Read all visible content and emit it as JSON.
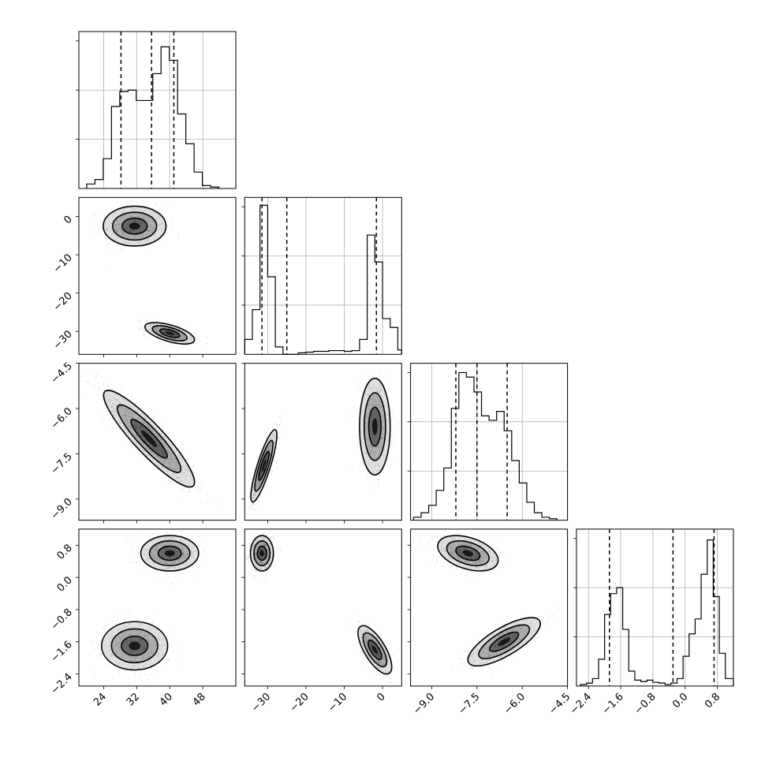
{
  "chart_data": {
    "type": "corner",
    "parameters": [
      {
        "range": [
          18,
          56
        ],
        "ticks": [
          24,
          32,
          40,
          48
        ],
        "tick_labels": [
          "24",
          "32",
          "40",
          "48"
        ]
      },
      {
        "range": [
          -36,
          5
        ],
        "ticks": [
          -30,
          -20,
          -10,
          0
        ],
        "tick_labels": [
          "−30",
          "−20",
          "−10",
          "0"
        ]
      },
      {
        "range": [
          -9.7,
          -4.5
        ],
        "ticks": [
          -9.0,
          -7.5,
          -6.0,
          -4.5
        ],
        "tick_labels": [
          "−9.0",
          "−7.5",
          "−6.0",
          "−4.5"
        ]
      },
      {
        "range": [
          -2.7,
          1.2
        ],
        "ticks": [
          -2.4,
          -1.6,
          -0.8,
          0.0,
          0.8
        ],
        "tick_labels": [
          "−2.4",
          "−1.6",
          "−0.8",
          "0.0",
          "0.8"
        ]
      }
    ],
    "histograms": [
      {
        "param": 0,
        "quantiles": [
          28.2,
          35.6,
          41.0
        ],
        "bins": [
          {
            "x0": 19.9,
            "x1": 21.9,
            "count": 0.03
          },
          {
            "x0": 21.9,
            "x1": 23.9,
            "count": 0.06
          },
          {
            "x0": 23.9,
            "x1": 25.9,
            "count": 0.2
          },
          {
            "x0": 25.9,
            "x1": 27.9,
            "count": 0.55
          },
          {
            "x0": 27.9,
            "x1": 29.9,
            "count": 0.65
          },
          {
            "x0": 29.9,
            "x1": 31.9,
            "count": 0.66
          },
          {
            "x0": 31.9,
            "x1": 33.9,
            "count": 0.59
          },
          {
            "x0": 33.9,
            "x1": 35.9,
            "count": 0.59
          },
          {
            "x0": 35.9,
            "x1": 37.9,
            "count": 0.77
          },
          {
            "x0": 37.9,
            "x1": 39.9,
            "count": 0.95
          },
          {
            "x0": 39.9,
            "x1": 41.9,
            "count": 0.86
          },
          {
            "x0": 41.9,
            "x1": 43.9,
            "count": 0.5
          },
          {
            "x0": 43.9,
            "x1": 45.9,
            "count": 0.3
          },
          {
            "x0": 45.9,
            "x1": 47.9,
            "count": 0.11
          },
          {
            "x0": 47.9,
            "x1": 49.9,
            "count": 0.02
          },
          {
            "x0": 49.9,
            "x1": 51.9,
            "count": 0.01
          }
        ]
      },
      {
        "param": 1,
        "quantiles": [
          -31.5,
          -25.0,
          -1.6
        ],
        "bins": [
          {
            "x0": -36,
            "x1": -34,
            "count": 0.1
          },
          {
            "x0": -34,
            "x1": -32,
            "count": 0.3
          },
          {
            "x0": -32,
            "x1": -30,
            "count": 1.0
          },
          {
            "x0": -30,
            "x1": -28,
            "count": 0.52
          },
          {
            "x0": -28,
            "x1": -26,
            "count": 0.05
          },
          {
            "x0": -26,
            "x1": -24,
            "count": 0.0
          },
          {
            "x0": -24,
            "x1": -22,
            "count": 0.0
          },
          {
            "x0": -22,
            "x1": -20,
            "count": 0.01
          },
          {
            "x0": -20,
            "x1": -18,
            "count": 0.015
          },
          {
            "x0": -18,
            "x1": -16,
            "count": 0.02
          },
          {
            "x0": -16,
            "x1": -14,
            "count": 0.02
          },
          {
            "x0": -14,
            "x1": -12,
            "count": 0.025
          },
          {
            "x0": -12,
            "x1": -10,
            "count": 0.025
          },
          {
            "x0": -10,
            "x1": -8,
            "count": 0.02
          },
          {
            "x0": -8,
            "x1": -6,
            "count": 0.025
          },
          {
            "x0": -6,
            "x1": -4,
            "count": 0.1
          },
          {
            "x0": -4,
            "x1": -2,
            "count": 0.8
          },
          {
            "x0": -2,
            "x1": 0,
            "count": 0.62
          },
          {
            "x0": 0,
            "x1": 2,
            "count": 0.24
          },
          {
            "x0": 2,
            "x1": 4,
            "count": 0.18
          },
          {
            "x0": 4,
            "x1": 5,
            "count": 0.03
          }
        ]
      },
      {
        "param": 2,
        "quantiles": [
          -8.2,
          -7.5,
          -6.5
        ],
        "bins": [
          {
            "x0": -9.6,
            "x1": -9.35,
            "count": 0.02
          },
          {
            "x0": -9.35,
            "x1": -9.1,
            "count": 0.05
          },
          {
            "x0": -9.1,
            "x1": -8.85,
            "count": 0.1
          },
          {
            "x0": -8.85,
            "x1": -8.6,
            "count": 0.2
          },
          {
            "x0": -8.6,
            "x1": -8.35,
            "count": 0.35
          },
          {
            "x0": -8.35,
            "x1": -8.1,
            "count": 0.75
          },
          {
            "x0": -8.1,
            "x1": -7.85,
            "count": 0.99
          },
          {
            "x0": -7.85,
            "x1": -7.6,
            "count": 0.96
          },
          {
            "x0": -7.6,
            "x1": -7.35,
            "count": 0.86
          },
          {
            "x0": -7.35,
            "x1": -7.1,
            "count": 0.7
          },
          {
            "x0": -7.1,
            "x1": -6.85,
            "count": 0.67
          },
          {
            "x0": -6.85,
            "x1": -6.6,
            "count": 0.73
          },
          {
            "x0": -6.6,
            "x1": -6.35,
            "count": 0.6
          },
          {
            "x0": -6.35,
            "x1": -6.1,
            "count": 0.4
          },
          {
            "x0": -6.1,
            "x1": -5.85,
            "count": 0.25
          },
          {
            "x0": -5.85,
            "x1": -5.6,
            "count": 0.12
          },
          {
            "x0": -5.6,
            "x1": -5.35,
            "count": 0.05
          },
          {
            "x0": -5.35,
            "x1": -5.1,
            "count": 0.02
          },
          {
            "x0": -5.1,
            "x1": -4.85,
            "count": 0.01
          }
        ]
      },
      {
        "param": 3,
        "quantiles": [
          -1.88,
          -0.3,
          0.72
        ],
        "bins": [
          {
            "x0": -2.6,
            "x1": -2.45,
            "count": 0.01
          },
          {
            "x0": -2.45,
            "x1": -2.3,
            "count": 0.02
          },
          {
            "x0": -2.3,
            "x1": -2.15,
            "count": 0.05
          },
          {
            "x0": -2.15,
            "x1": -2.0,
            "count": 0.18
          },
          {
            "x0": -2.0,
            "x1": -1.85,
            "count": 0.48
          },
          {
            "x0": -1.85,
            "x1": -1.7,
            "count": 0.62
          },
          {
            "x0": -1.7,
            "x1": -1.55,
            "count": 0.66
          },
          {
            "x0": -1.55,
            "x1": -1.4,
            "count": 0.38
          },
          {
            "x0": -1.4,
            "x1": -1.25,
            "count": 0.1
          },
          {
            "x0": -1.25,
            "x1": -1.1,
            "count": 0.04
          },
          {
            "x0": -1.1,
            "x1": -0.95,
            "count": 0.03
          },
          {
            "x0": -0.95,
            "x1": -0.8,
            "count": 0.04
          },
          {
            "x0": -0.8,
            "x1": -0.65,
            "count": 0.025
          },
          {
            "x0": -0.65,
            "x1": -0.5,
            "count": 0.02
          },
          {
            "x0": -0.5,
            "x1": -0.35,
            "count": 0.01
          },
          {
            "x0": -0.35,
            "x1": -0.2,
            "count": 0.02
          },
          {
            "x0": -0.2,
            "x1": -0.05,
            "count": 0.05
          },
          {
            "x0": -0.05,
            "x1": 0.1,
            "count": 0.2
          },
          {
            "x0": 0.1,
            "x1": 0.25,
            "count": 0.35
          },
          {
            "x0": 0.25,
            "x1": 0.4,
            "count": 0.45
          },
          {
            "x0": 0.4,
            "x1": 0.55,
            "count": 0.75
          },
          {
            "x0": 0.55,
            "x1": 0.7,
            "count": 0.98
          },
          {
            "x0": 0.7,
            "x1": 0.85,
            "count": 0.6
          },
          {
            "x0": 0.85,
            "x1": 1.0,
            "count": 0.22
          },
          {
            "x0": 1.0,
            "x1": 1.2,
            "count": 0.05
          }
        ]
      }
    ],
    "joint": [
      {
        "row": 1,
        "col": 0,
        "modes": [
          {
            "x": 31.5,
            "y": -2.5,
            "sx": 3.8,
            "sy": 2.6,
            "rho": 0.0,
            "weight": 0.5
          },
          {
            "x": 40.0,
            "y": -30.5,
            "sx": 3.0,
            "sy": 1.4,
            "rho": -0.6,
            "weight": 0.5
          }
        ]
      },
      {
        "row": 2,
        "col": 0,
        "modes": [
          {
            "x": 35.0,
            "y": -7.0,
            "sx": 5.5,
            "sy": 0.8,
            "rho": -0.9,
            "weight": 1.0
          }
        ]
      },
      {
        "row": 2,
        "col": 1,
        "modes": [
          {
            "x": -31.0,
            "y": -7.9,
            "sx": 1.7,
            "sy": 0.6,
            "rho": 0.85,
            "weight": 0.5
          },
          {
            "x": -2.0,
            "y": -6.6,
            "sx": 2.0,
            "sy": 0.8,
            "rho": 0.0,
            "weight": 0.5
          }
        ]
      },
      {
        "row": 3,
        "col": 0,
        "modes": [
          {
            "x": 40.0,
            "y": 0.6,
            "sx": 3.5,
            "sy": 0.22,
            "rho": 0.0,
            "weight": 0.5
          },
          {
            "x": 31.5,
            "y": -1.7,
            "sx": 4.0,
            "sy": 0.3,
            "rho": 0.0,
            "weight": 0.5
          }
        ]
      },
      {
        "row": 3,
        "col": 1,
        "modes": [
          {
            "x": -31.5,
            "y": 0.6,
            "sx": 1.5,
            "sy": 0.22,
            "rho": 0.0,
            "weight": 0.5
          },
          {
            "x": -2.0,
            "y": -1.8,
            "sx": 2.2,
            "sy": 0.3,
            "rho": -0.7,
            "weight": 0.5
          }
        ]
      },
      {
        "row": 3,
        "col": 2,
        "modes": [
          {
            "x": -7.8,
            "y": 0.6,
            "sx": 0.5,
            "sy": 0.22,
            "rho": -0.4,
            "weight": 0.5
          },
          {
            "x": -6.6,
            "y": -1.6,
            "sx": 0.6,
            "sy": 0.3,
            "rho": 0.75,
            "weight": 0.5
          }
        ]
      }
    ]
  }
}
